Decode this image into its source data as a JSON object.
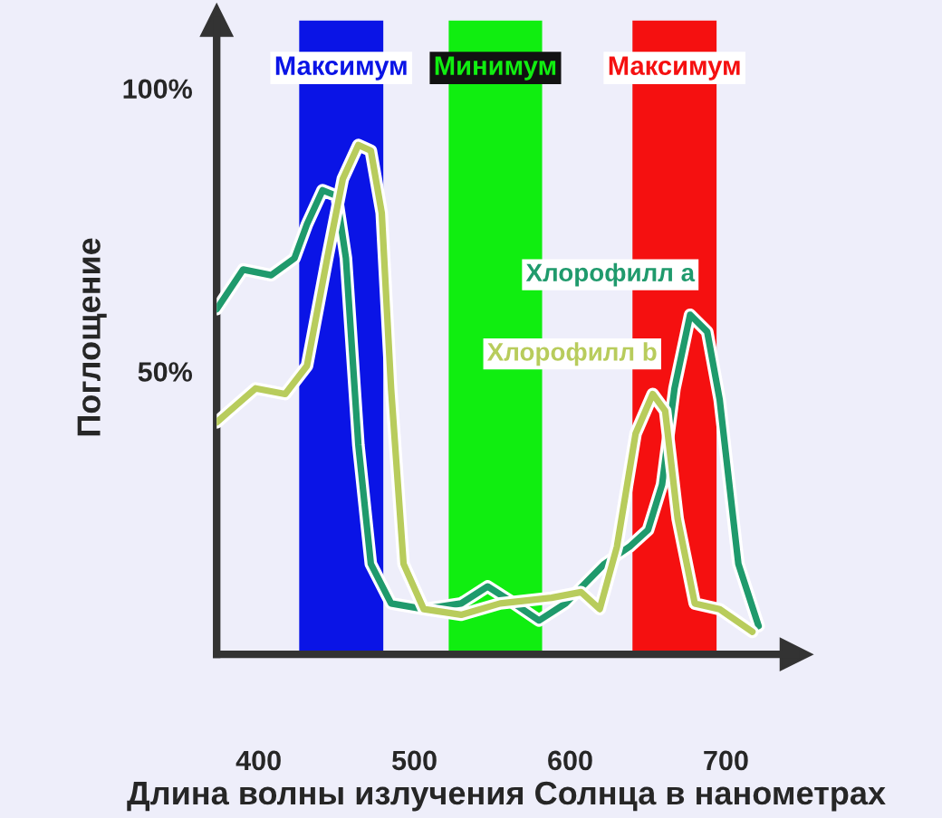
{
  "chart_data": {
    "type": "line",
    "xlabel": "Длина волны излучения Солнца в нанометрах",
    "ylabel": "Поглощение",
    "xlim": [
      373,
      745
    ],
    "ylim": [
      0,
      112
    ],
    "xticks": [
      400,
      500,
      600,
      700
    ],
    "yticks": [
      {
        "value": 50,
        "label": "50%"
      },
      {
        "value": 100,
        "label": "100%"
      }
    ],
    "bands": [
      {
        "axis": "x",
        "from": 426,
        "to": 480,
        "label": "Максимум",
        "color": "#0a14e6"
      },
      {
        "axis": "x",
        "from": 522,
        "to": 582,
        "label": "Минимум",
        "color": "#10ee10"
      },
      {
        "axis": "x",
        "from": 640,
        "to": 694,
        "label": "Максимум",
        "color": "#f51010"
      }
    ],
    "series": [
      {
        "name": "Хлорофилл a",
        "color": "#1f9a6c",
        "x": [
          373,
          390,
          408,
          423,
          431,
          441,
          450,
          456,
          464,
          472,
          485,
          506,
          530,
          547,
          564,
          580,
          597,
          622,
          638,
          650,
          659,
          667,
          677,
          688,
          696,
          708,
          721
        ],
        "values": [
          61,
          68,
          67,
          70,
          76,
          82,
          81,
          70,
          37,
          16,
          9,
          8,
          9,
          12,
          9,
          6,
          9,
          16,
          19,
          22,
          30,
          47,
          60,
          57,
          45,
          16,
          5
        ]
      },
      {
        "name": "Хлорофилл b",
        "color": "#b8cc5c",
        "x": [
          373,
          398,
          417,
          431,
          444,
          454,
          464,
          472,
          479,
          485,
          493,
          506,
          530,
          555,
          588,
          607,
          619,
          630,
          642,
          653,
          661,
          669,
          680,
          696,
          717
        ],
        "values": [
          41,
          47,
          46,
          51,
          70,
          84,
          90,
          89,
          78,
          47,
          16,
          8,
          7,
          9,
          10,
          11,
          8,
          19,
          39,
          46,
          43,
          24,
          9,
          8,
          4
        ]
      }
    ],
    "legend": false,
    "grid": false,
    "marker": "none",
    "line_style": "solid"
  }
}
